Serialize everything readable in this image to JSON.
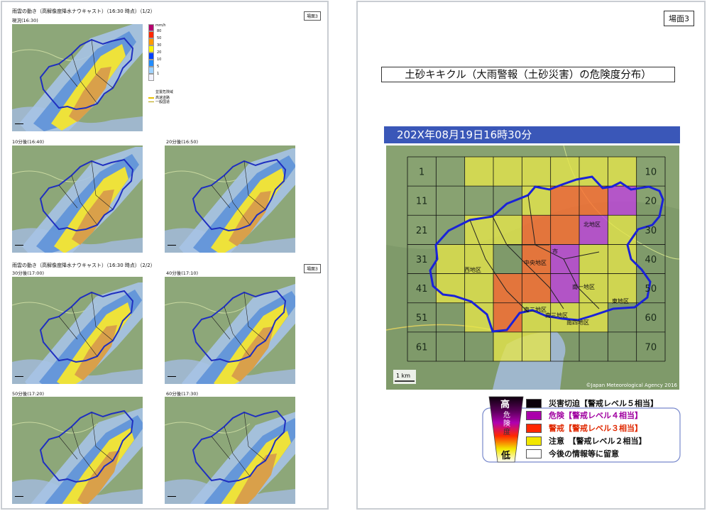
{
  "left_page": {
    "header1": "雨雲の動き（高解像度降水ナウキャスト）（16:30 時点）（1/2）",
    "header2": "雨雲の動き（高解像度降水ナウキャスト）（16:30 時点）（2/2）",
    "badge": "場面3",
    "maps": [
      {
        "label": "現況(16:30)"
      },
      {
        "label": "10分後(16:40)"
      },
      {
        "label": "20分後(16:50)"
      },
      {
        "label": "30分後(17:00)"
      },
      {
        "label": "40分後(17:10)"
      },
      {
        "label": "50分後(17:20)"
      },
      {
        "label": "60分後(17:30)"
      }
    ],
    "rain_legend": {
      "unit": "mm/h",
      "ticks": [
        "80",
        "50",
        "30",
        "20",
        "10",
        "5",
        "1"
      ],
      "colors": [
        "#b4006e",
        "#ff2800",
        "#ff9900",
        "#faf500",
        "#0041ff",
        "#218cff",
        "#a0d2ff",
        "#f2f2ff"
      ],
      "notes": [
        "並置危険域",
        "高速道路",
        "一般国道"
      ]
    }
  },
  "right_page": {
    "badge": "場面3",
    "title": "土砂キキクル（大雨警報（土砂災害）の危険度分布）",
    "timestamp": "202X年08月19日16時30分",
    "map": {
      "row_numbers_left": [
        "1",
        "11",
        "21",
        "31",
        "41",
        "51",
        "61"
      ],
      "row_numbers_right": [
        "10",
        "20",
        "30",
        "40",
        "50",
        "60",
        "70"
      ],
      "district_labels": [
        "北地区",
        "中央地区",
        "西地区",
        "南一地区",
        "南二地区",
        "南三地区",
        "南四地区",
        "東地区",
        "市"
      ],
      "scale": "1 km",
      "copyright": "©Japan Meteorological Agency 2016"
    },
    "legend": {
      "high": "高",
      "low": "低",
      "mid_chars": [
        "危",
        "険",
        "度"
      ],
      "items": [
        {
          "label": "災害切迫【警戒レベル５相当】",
          "color": "#0c000c",
          "text_color": "#111111"
        },
        {
          "label": "危険【警戒レベル４相当】",
          "color": "#aa00aa",
          "text_color": "#a000a0"
        },
        {
          "label": "警戒【警戒レベル３相当】",
          "color": "#ff2800",
          "text_color": "#e02800"
        },
        {
          "label": "注意　【警戒レベル２相当】",
          "color": "#f2e700",
          "text_color": "#111111"
        },
        {
          "label": "今後の情報等に留意",
          "color": "#ffffff",
          "text_color": "#111111"
        }
      ]
    }
  }
}
